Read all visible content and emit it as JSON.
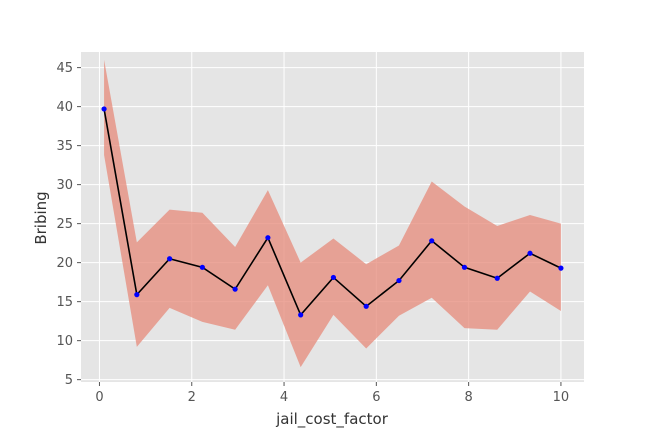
{
  "chart_data": {
    "type": "line",
    "title": "",
    "xlabel": "jail_cost_factor",
    "ylabel": "Bribing",
    "xlim": [
      -0.4,
      10.5
    ],
    "ylim": [
      4.7,
      47.0
    ],
    "xticks": [
      0,
      2,
      4,
      6,
      8,
      10
    ],
    "xtick_labels": [
      "0",
      "2",
      "4",
      "6",
      "8",
      "10"
    ],
    "yticks": [
      5,
      10,
      15,
      20,
      25,
      30,
      35,
      40,
      45
    ],
    "ytick_labels": [
      "5",
      "10",
      "15",
      "20",
      "25",
      "30",
      "35",
      "40",
      "45"
    ],
    "grid": true,
    "series": [
      {
        "x": [
          0.1,
          0.81,
          1.52,
          2.23,
          2.94,
          3.65,
          4.36,
          5.07,
          5.78,
          6.49,
          7.2,
          7.91,
          8.62,
          9.33,
          10.0
        ],
        "y": [
          39.7,
          15.9,
          20.5,
          19.4,
          16.6,
          23.2,
          13.3,
          18.1,
          14.4,
          17.7,
          22.8,
          19.4,
          18.0,
          21.2,
          19.3
        ],
        "lower": [
          33.8,
          9.2,
          14.2,
          12.4,
          11.4,
          17.1,
          6.6,
          13.3,
          9.0,
          13.2,
          15.5,
          11.6,
          11.4,
          16.3,
          13.8
        ],
        "upper": [
          46.0,
          22.6,
          26.8,
          26.4,
          22.0,
          29.3,
          20.0,
          23.1,
          19.8,
          22.2,
          30.4,
          27.2,
          24.7,
          26.1,
          25.0
        ]
      }
    ],
    "colors": {
      "plot_background": "#e5e5e5",
      "grid": "#ffffff",
      "line": "#000000",
      "markers": "#0000ff",
      "band": "#e58a7a"
    }
  }
}
